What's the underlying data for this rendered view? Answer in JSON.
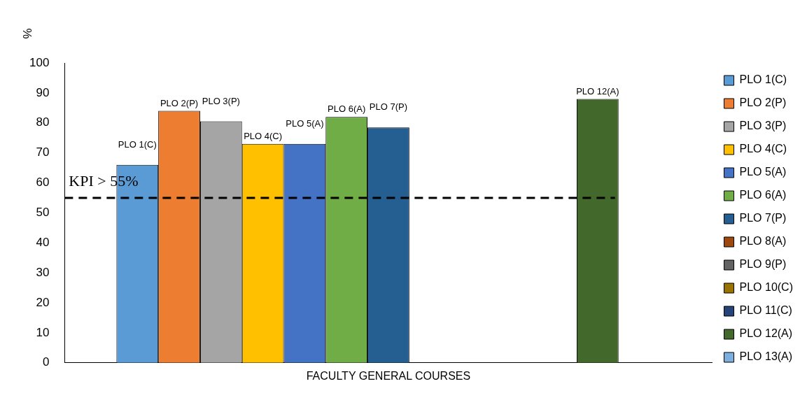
{
  "chart_data": {
    "type": "bar",
    "ylabel": "%",
    "categories": [
      "FACULTY GENERAL COURSES"
    ],
    "series": [
      {
        "name": "PLO 1(C)",
        "color": "#5b9bd5",
        "values": [
          66
        ]
      },
      {
        "name": "PLO 2(P)",
        "color": "#ed7d31",
        "values": [
          84
        ]
      },
      {
        "name": "PLO 3(P)",
        "color": "#a5a5a5",
        "values": [
          80.5
        ]
      },
      {
        "name": "PLO 4(C)",
        "color": "#ffc000",
        "values": [
          73
        ]
      },
      {
        "name": "PLO 5(A)",
        "color": "#4472c4",
        "values": [
          73
        ]
      },
      {
        "name": "PLO 6(A)",
        "color": "#70ad47",
        "values": [
          82
        ]
      },
      {
        "name": "PLO 7(P)",
        "color": "#255e91",
        "values": [
          78.5
        ]
      },
      {
        "name": "PLO 8(A)",
        "color": "#9e480e",
        "values": [
          null
        ]
      },
      {
        "name": "PLO 9(P)",
        "color": "#636363",
        "values": [
          null
        ]
      },
      {
        "name": "PLO 10(C)",
        "color": "#997300",
        "values": [
          null
        ]
      },
      {
        "name": "PLO 11(C)",
        "color": "#264478",
        "values": [
          null
        ]
      },
      {
        "name": "PLO 12(A)",
        "color": "#43682b",
        "values": [
          88
        ]
      },
      {
        "name": "PLO 13(A)",
        "color": "#7cafdd",
        "values": [
          null
        ]
      }
    ],
    "ylim": [
      0,
      100
    ],
    "yticks": [
      0,
      10,
      20,
      30,
      40,
      50,
      60,
      70,
      80,
      90,
      100
    ],
    "grid": false,
    "legend": "right",
    "ref_lines": [
      {
        "axis": "y",
        "value": 55,
        "label": "KPI > 55%",
        "color": "#000000",
        "line_style": "dashed"
      }
    ]
  }
}
